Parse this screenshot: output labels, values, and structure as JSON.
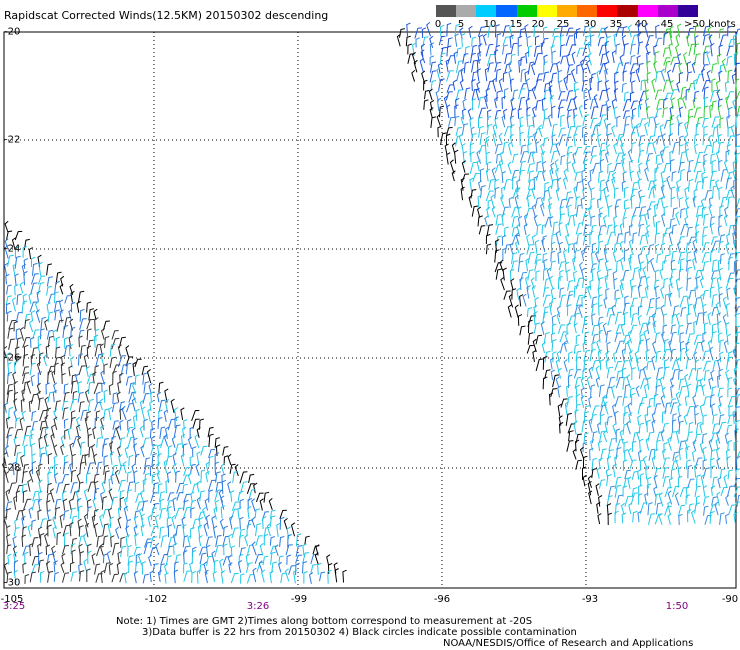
{
  "title": "Rapidscat Corrected Winds(12.5KM) 20150302 descending",
  "legend": {
    "colors": [
      "#555555",
      "#aaaaaa",
      "#00ccff",
      "#0066ff",
      "#00cc00",
      "#ffff00",
      "#ffaa00",
      "#ff6600",
      "#ff0000",
      "#aa0000",
      "#ff00ff",
      "#aa00cc",
      "#330099"
    ],
    "labels": [
      "0",
      "5",
      "10",
      "15",
      "20",
      "25",
      "30",
      "35",
      "40",
      "45",
      ">50 knots"
    ]
  },
  "axes": {
    "y_labels": [
      "-20",
      "-22",
      "-24",
      "-26",
      "-28",
      "-30"
    ],
    "x_labels": [
      "-105",
      "-102",
      "-99",
      "-96",
      "-93",
      "-90"
    ]
  },
  "times": [
    "3:25",
    "3:26",
    "1:50"
  ],
  "notes": {
    "line1": "Note: 1) Times are GMT 2)Times along bottom correspond to measurement at -20S",
    "line2": "3)Data buffer is 22 hrs from 20150302 4) Black circles indicate possible contamination",
    "credit": "NOAA/NESDIS/Office of Research and Applications"
  }
}
